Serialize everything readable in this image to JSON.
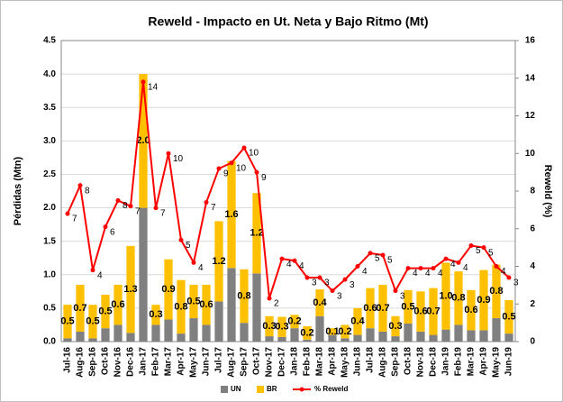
{
  "chart_data": {
    "type": "bar",
    "title": "Reweld - Impacto en Ut. Neta y Bajo Ritmo (Mt)",
    "ylabel": "Pérdidas (Mtn)",
    "y2label": "Reweld (%)",
    "stacked": true,
    "grid": true,
    "legend": "bottom",
    "categories": [
      "Jul-16",
      "Aug-16",
      "Sep-16",
      "Oct-16",
      "Nov-16",
      "Dec-16",
      "Jan-17",
      "Feb-17",
      "Mar-17",
      "Apr-17",
      "May-17",
      "Jun-17",
      "Jul-17",
      "Aug-17",
      "Sep-17",
      "Oct-17",
      "Nov-17",
      "Dec-17",
      "Jan-18",
      "Feb-18",
      "Mar-18",
      "Apr-18",
      "May-18",
      "Jun-18",
      "Jul-18",
      "Aug-18",
      "Sep-18",
      "Oct-18",
      "Nov-18",
      "Dec-18",
      "Jan-19",
      "Feb-19",
      "Mar-19",
      "Apr-19",
      "May-19",
      "Jun-19"
    ],
    "series": [
      {
        "name": "UN",
        "color": "#808080",
        "type": "bar",
        "values": [
          0.05,
          0.15,
          0.05,
          0.2,
          0.25,
          0.13,
          2.0,
          0.25,
          0.33,
          0.12,
          0.35,
          0.25,
          0.6,
          1.1,
          0.28,
          1.02,
          0.08,
          0.07,
          0.2,
          0.03,
          0.38,
          0.1,
          0.05,
          0.1,
          0.2,
          0.15,
          0.08,
          0.27,
          0.15,
          0.1,
          0.18,
          0.25,
          0.17,
          0.17,
          0.35,
          0.12
        ]
      },
      {
        "name": "BR",
        "color": "#FFC000",
        "type": "bar",
        "values": [
          0.5,
          0.7,
          0.5,
          0.5,
          0.6,
          1.3,
          2.0,
          0.3,
          0.9,
          0.8,
          0.5,
          0.6,
          1.2,
          1.6,
          0.8,
          1.2,
          0.3,
          0.3,
          0.2,
          0.2,
          0.4,
          0.1,
          0.2,
          0.4,
          0.6,
          0.7,
          0.3,
          0.5,
          0.6,
          0.7,
          1.0,
          0.8,
          0.6,
          0.9,
          0.8,
          0.5
        ],
        "value_labels": [
          "0.5",
          "0.7",
          "0.5",
          "0.5",
          "0.6",
          "1.3",
          "2.0",
          "0.3",
          "0.9",
          "0.8",
          "0.5",
          "0.6",
          "1.2",
          "1.6",
          "0.8",
          "1.2",
          "0.3",
          "0.3",
          "0.2",
          "0.2",
          "0.4",
          "0.1",
          "0.2",
          "0.4",
          "0.6",
          "0.7",
          "0.3",
          "0.5",
          "0.6",
          "0.7",
          "1.0",
          "0.8",
          "0.6",
          "0.9",
          "0.8",
          "0.5"
        ]
      },
      {
        "name": "% Reweld",
        "color": "#FF0000",
        "type": "line",
        "axis": "y2",
        "values": [
          6.8,
          8.3,
          3.8,
          6.1,
          7.5,
          7.2,
          13.8,
          7.1,
          10.0,
          5.4,
          4.2,
          7.4,
          9.2,
          9.5,
          10.3,
          9.0,
          2.3,
          4.4,
          4.3,
          3.4,
          3.4,
          2.7,
          3.3,
          4.0,
          4.7,
          4.6,
          2.7,
          3.9,
          3.9,
          3.9,
          4.4,
          4.2,
          5.1,
          5.0,
          4.0,
          3.4
        ],
        "value_labels": [
          "7",
          "8",
          "4",
          "6",
          "8",
          "7",
          "14",
          "7",
          "10",
          "5",
          "4",
          "7",
          "9",
          "10",
          "10",
          "9",
          "2",
          "4",
          "4",
          "3",
          "3",
          "3",
          "3",
          "4",
          "5",
          "5",
          "3",
          "4",
          "4",
          "4",
          "4",
          "4",
          "5",
          "5",
          "4",
          "3"
        ]
      }
    ],
    "ylim": [
      0,
      4.5
    ],
    "yticks": [
      {
        "value": 0,
        "label": "0.0"
      },
      {
        "value": 0.5,
        "label": "0.5"
      },
      {
        "value": 1,
        "label": "1.0"
      },
      {
        "value": 1.5,
        "label": "1.5"
      },
      {
        "value": 2,
        "label": "2.0"
      },
      {
        "value": 2.5,
        "label": "2.5"
      },
      {
        "value": 3,
        "label": "3.0"
      },
      {
        "value": 3.5,
        "label": "3.5"
      },
      {
        "value": 4,
        "label": "4.0"
      },
      {
        "value": 4.5,
        "label": "4.5"
      }
    ],
    "y2lim": [
      0,
      16
    ],
    "y2ticks": [
      0,
      2,
      4,
      6,
      8,
      10,
      12,
      14,
      16
    ]
  }
}
